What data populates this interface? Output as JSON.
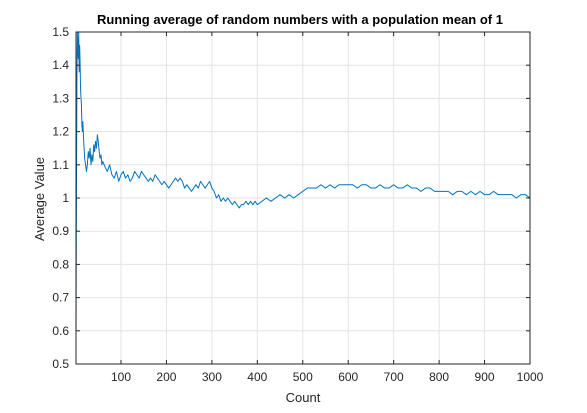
{
  "chart_data": {
    "type": "line",
    "title": "Running average of random numbers with a population mean of 1",
    "xlabel": "Count",
    "ylabel": "Average Value",
    "xlim": [
      1,
      1000
    ],
    "ylim": [
      0.5,
      1.5
    ],
    "xticks": [
      100,
      200,
      300,
      400,
      500,
      600,
      700,
      800,
      900,
      1000
    ],
    "xtick_labels": [
      "100",
      "200",
      "300",
      "400",
      "500",
      "600",
      "700",
      "800",
      "900",
      "1000"
    ],
    "yticks": [
      0.5,
      0.6,
      0.7,
      0.8,
      0.9,
      1,
      1.1,
      1.2,
      1.3,
      1.4,
      1.5
    ],
    "ytick_labels": [
      "0.5",
      "0.6",
      "0.7",
      "0.8",
      "0.9",
      "1",
      "1.1",
      "1.2",
      "1.3",
      "1.4",
      "1.5"
    ],
    "grid": true,
    "series_color": "#0072BD",
    "series": [
      {
        "x": [
          1,
          2,
          3,
          4,
          5,
          6,
          7,
          8,
          9,
          10,
          11,
          12,
          13,
          14,
          15,
          16,
          18,
          20,
          22,
          24,
          26,
          28,
          30,
          32,
          34,
          36,
          38,
          40,
          42,
          44,
          46,
          48,
          50,
          52,
          54,
          56,
          58,
          60,
          63,
          66,
          70,
          75,
          80,
          85,
          90,
          95,
          100,
          105,
          110,
          115,
          120,
          125,
          130,
          135,
          140,
          145,
          150,
          155,
          160,
          165,
          170,
          175,
          180,
          185,
          190,
          195,
          200,
          205,
          210,
          215,
          220,
          225,
          230,
          235,
          240,
          245,
          250,
          255,
          260,
          265,
          270,
          275,
          280,
          285,
          290,
          295,
          300,
          305,
          310,
          315,
          320,
          325,
          330,
          335,
          340,
          345,
          350,
          355,
          360,
          365,
          370,
          375,
          380,
          385,
          390,
          395,
          400,
          410,
          420,
          430,
          440,
          450,
          460,
          470,
          480,
          490,
          500,
          510,
          520,
          530,
          540,
          550,
          560,
          570,
          580,
          590,
          600,
          610,
          620,
          630,
          640,
          650,
          660,
          670,
          680,
          690,
          700,
          710,
          720,
          730,
          740,
          750,
          760,
          770,
          780,
          790,
          800,
          810,
          820,
          830,
          840,
          850,
          860,
          870,
          880,
          890,
          900,
          910,
          920,
          930,
          940,
          950,
          960,
          970,
          980,
          990,
          1000
        ],
        "y": [
          0.58,
          1.02,
          1.35,
          1.5,
          1.45,
          1.42,
          1.5,
          1.38,
          1.46,
          1.41,
          1.33,
          1.3,
          1.28,
          1.22,
          1.2,
          1.23,
          1.17,
          1.12,
          1.1,
          1.08,
          1.1,
          1.14,
          1.12,
          1.15,
          1.1,
          1.13,
          1.11,
          1.16,
          1.14,
          1.17,
          1.15,
          1.19,
          1.17,
          1.14,
          1.12,
          1.13,
          1.1,
          1.11,
          1.1,
          1.09,
          1.08,
          1.1,
          1.07,
          1.06,
          1.08,
          1.05,
          1.07,
          1.08,
          1.06,
          1.07,
          1.05,
          1.06,
          1.08,
          1.07,
          1.06,
          1.08,
          1.07,
          1.06,
          1.05,
          1.06,
          1.05,
          1.07,
          1.06,
          1.05,
          1.04,
          1.05,
          1.04,
          1.03,
          1.04,
          1.05,
          1.06,
          1.05,
          1.06,
          1.05,
          1.03,
          1.04,
          1.03,
          1.02,
          1.03,
          1.04,
          1.03,
          1.05,
          1.04,
          1.03,
          1.04,
          1.05,
          1.03,
          1.02,
          1.0,
          1.01,
          0.99,
          1.0,
          0.99,
          1.0,
          0.99,
          0.98,
          0.99,
          0.98,
          0.97,
          0.98,
          0.98,
          0.99,
          0.98,
          0.99,
          0.98,
          0.99,
          0.98,
          0.99,
          1.0,
          0.99,
          1.0,
          1.01,
          1.0,
          1.01,
          1.0,
          1.01,
          1.02,
          1.03,
          1.03,
          1.03,
          1.04,
          1.03,
          1.04,
          1.03,
          1.04,
          1.04,
          1.04,
          1.04,
          1.03,
          1.04,
          1.04,
          1.03,
          1.03,
          1.04,
          1.03,
          1.03,
          1.04,
          1.03,
          1.03,
          1.04,
          1.03,
          1.03,
          1.02,
          1.03,
          1.03,
          1.02,
          1.02,
          1.02,
          1.02,
          1.01,
          1.02,
          1.02,
          1.01,
          1.02,
          1.01,
          1.02,
          1.01,
          1.01,
          1.02,
          1.01,
          1.01,
          1.01,
          1.01,
          1.0,
          1.01,
          1.01,
          1.0
        ]
      }
    ]
  }
}
